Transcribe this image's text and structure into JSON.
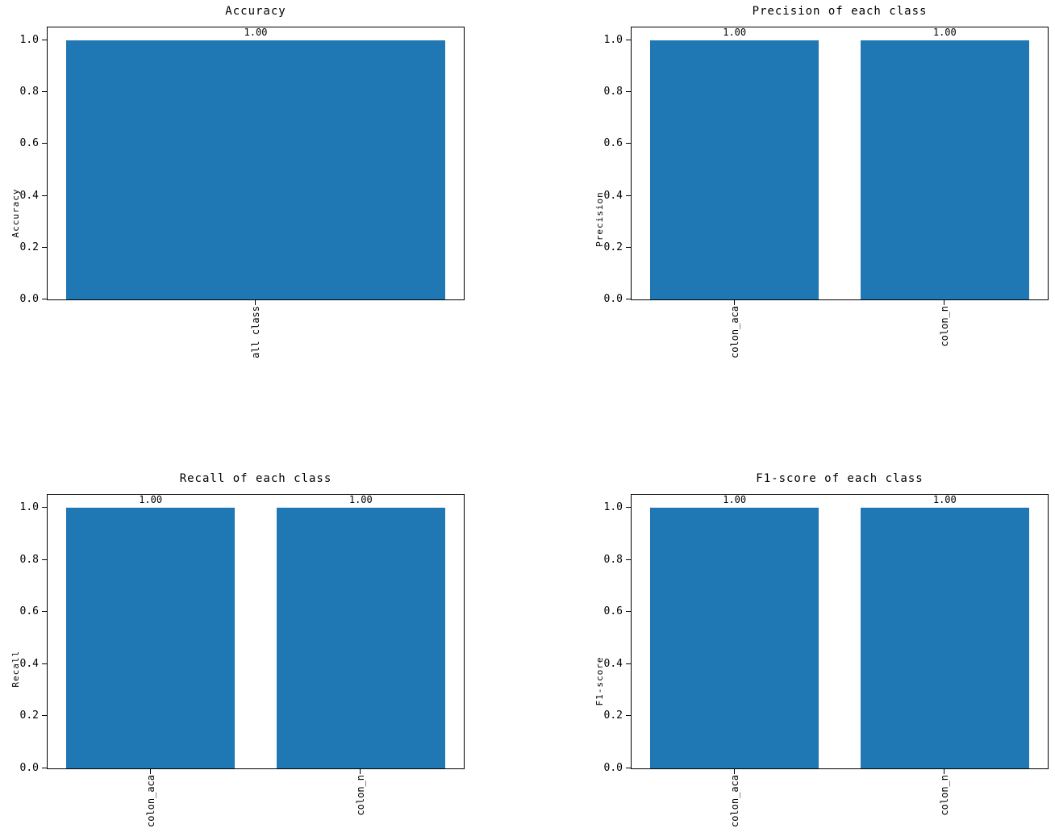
{
  "figure": {
    "background": "#ffffff",
    "bar_color": "#1f77b4",
    "axis_color": "#000000",
    "text_color": "#000000"
  },
  "chart_data": [
    {
      "type": "bar",
      "title": "Accuracy",
      "xlabel": "",
      "ylabel": "Accuracy",
      "categories": [
        "all class"
      ],
      "values": [
        1.0
      ],
      "bar_labels": [
        "1.00"
      ],
      "ytick_values": [
        0.0,
        0.2,
        0.4,
        0.6,
        0.8,
        1.0
      ],
      "ytick_labels": [
        "0.0",
        "0.2",
        "0.4",
        "0.6",
        "0.8",
        "1.0"
      ],
      "ylim": [
        0,
        1.05
      ],
      "grid": false,
      "legend": null,
      "bar_color": "#1f77b4"
    },
    {
      "type": "bar",
      "title": "Precision of each class",
      "xlabel": "",
      "ylabel": "Precision",
      "categories": [
        "colon_aca",
        "colon_n"
      ],
      "values": [
        1.0,
        1.0
      ],
      "bar_labels": [
        "1.00",
        "1.00"
      ],
      "ytick_values": [
        0.0,
        0.2,
        0.4,
        0.6,
        0.8,
        1.0
      ],
      "ytick_labels": [
        "0.0",
        "0.2",
        "0.4",
        "0.6",
        "0.8",
        "1.0"
      ],
      "ylim": [
        0,
        1.05
      ],
      "grid": false,
      "legend": null,
      "bar_color": "#1f77b4"
    },
    {
      "type": "bar",
      "title": "Recall of each class",
      "xlabel": "",
      "ylabel": "Recall",
      "categories": [
        "colon_aca",
        "colon_n"
      ],
      "values": [
        1.0,
        1.0
      ],
      "bar_labels": [
        "1.00",
        "1.00"
      ],
      "ytick_values": [
        0.0,
        0.2,
        0.4,
        0.6,
        0.8,
        1.0
      ],
      "ytick_labels": [
        "0.0",
        "0.2",
        "0.4",
        "0.6",
        "0.8",
        "1.0"
      ],
      "ylim": [
        0,
        1.05
      ],
      "grid": false,
      "legend": null,
      "bar_color": "#1f77b4"
    },
    {
      "type": "bar",
      "title": "F1-score of each class",
      "xlabel": "",
      "ylabel": "F1-score",
      "categories": [
        "colon_aca",
        "colon_n"
      ],
      "values": [
        1.0,
        1.0
      ],
      "bar_labels": [
        "1.00",
        "1.00"
      ],
      "ytick_values": [
        0.0,
        0.2,
        0.4,
        0.6,
        0.8,
        1.0
      ],
      "ytick_labels": [
        "0.0",
        "0.2",
        "0.4",
        "0.6",
        "0.8",
        "1.0"
      ],
      "ylim": [
        0,
        1.05
      ],
      "grid": false,
      "legend": null,
      "bar_color": "#1f77b4"
    }
  ]
}
